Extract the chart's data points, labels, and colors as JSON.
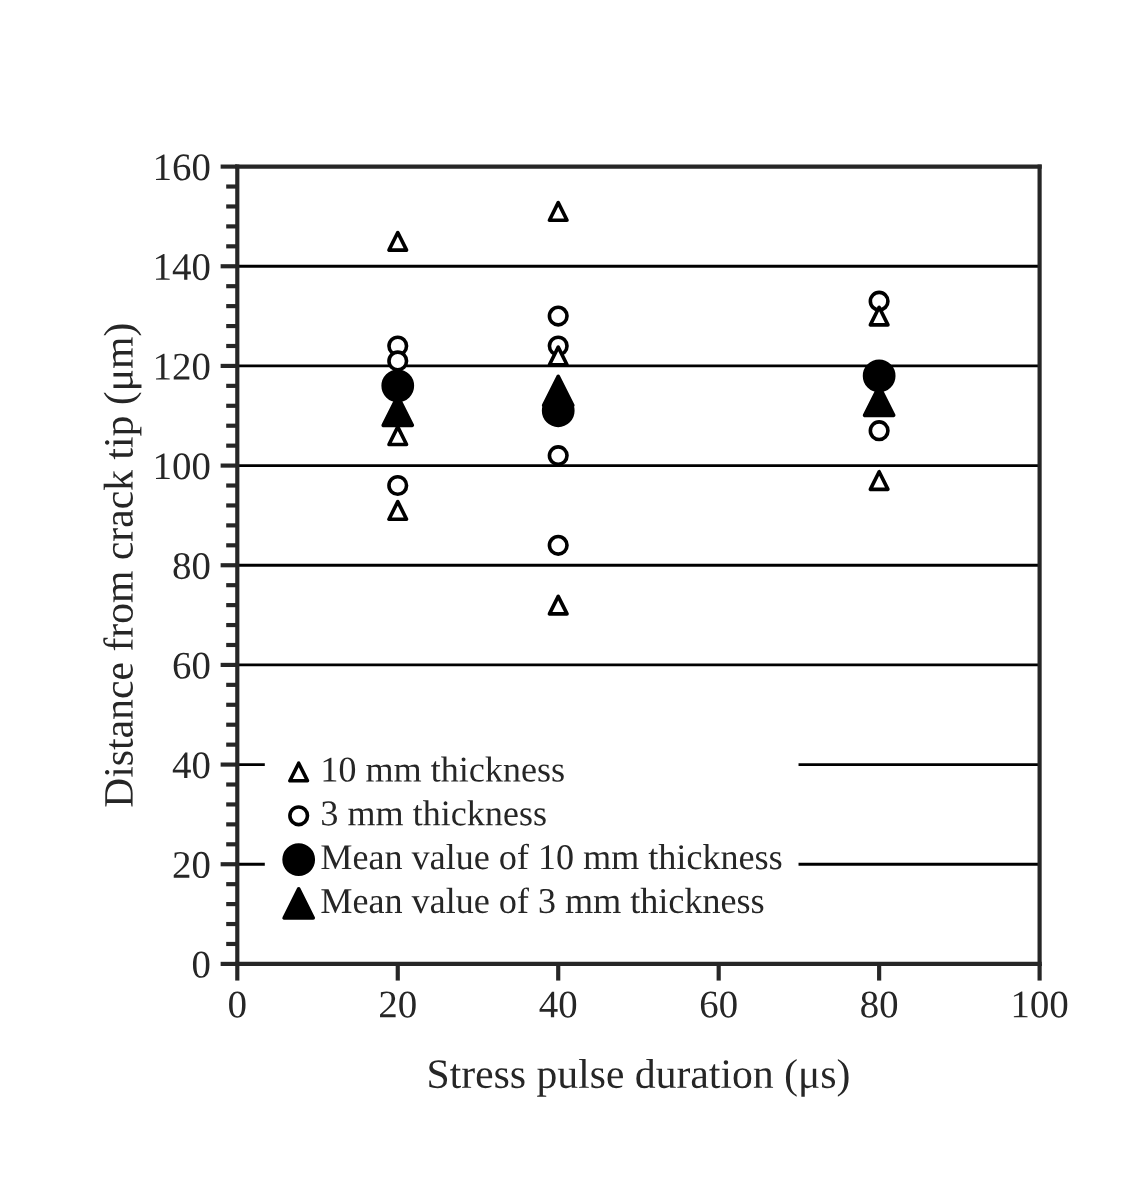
{
  "chart_data": {
    "type": "scatter",
    "xlabel": "Stress pulse duration (μs)",
    "ylabel": "Distance from crack tip (μm)",
    "xlim": [
      0,
      100
    ],
    "xticks": [
      0,
      20,
      40,
      60,
      80,
      100
    ],
    "ylim": [
      0,
      160
    ],
    "yticks": [
      0,
      20,
      40,
      60,
      80,
      100,
      120,
      140,
      160
    ],
    "grid": "y",
    "legend": "bottom left",
    "series": [
      {
        "name": "10 mm thickness",
        "color": "#ffffff",
        "marker": "triangle",
        "x": [
          20,
          20,
          20,
          40,
          40,
          40,
          80,
          80
        ],
        "values": [
          145,
          106,
          91,
          151,
          122,
          72,
          130,
          97
        ]
      },
      {
        "name": "3 mm thickness",
        "color": "#ffffff",
        "marker": "circle",
        "x": [
          20,
          20,
          20,
          40,
          40,
          40,
          40,
          80,
          80
        ],
        "values": [
          124,
          121,
          96,
          130,
          124,
          102,
          84,
          133,
          107
        ]
      },
      {
        "name": "Mean value of 10 mm thickness",
        "color": "#000000",
        "marker": "circle",
        "x": [
          20,
          40,
          80
        ],
        "values": [
          116,
          111,
          118
        ]
      },
      {
        "name": "Mean value of 3 mm thickness",
        "color": "#000000",
        "marker": "triangle",
        "x": [
          20,
          40,
          80
        ],
        "values": [
          111,
          115,
          113
        ]
      }
    ]
  }
}
